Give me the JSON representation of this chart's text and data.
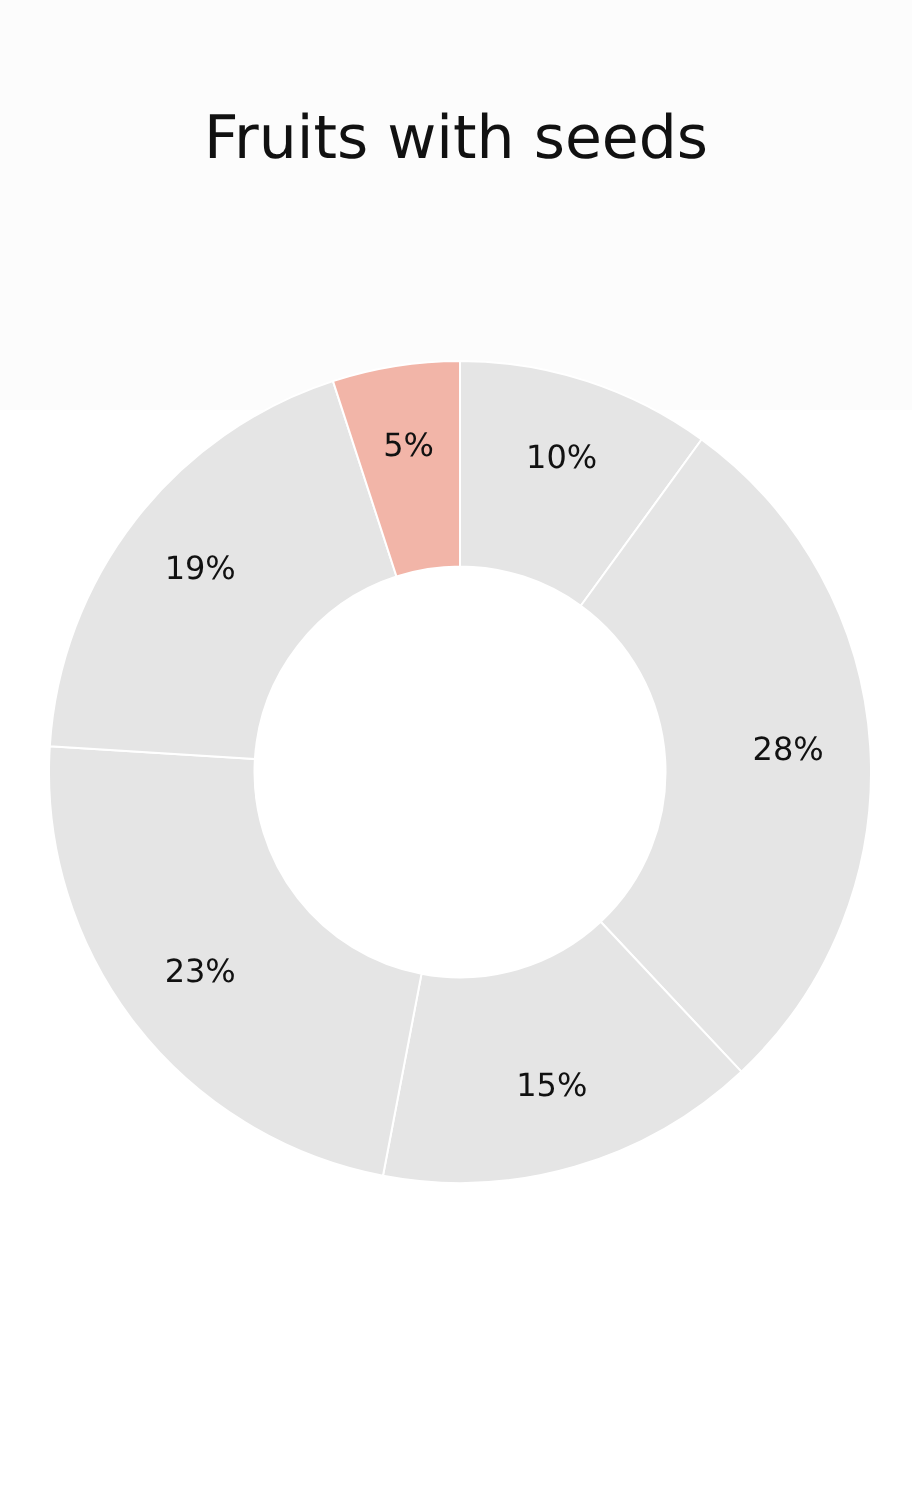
{
  "chart_data": {
    "type": "donut",
    "title": "Fruits with seeds",
    "categories": [
      null,
      null,
      null,
      null,
      null,
      null
    ],
    "values": [
      10,
      28,
      15,
      23,
      19,
      5
    ],
    "colors": [
      "#e5e5e5",
      "#e5e5e5",
      "#e5e5e5",
      "#e5e5e5",
      "#e5e5e5",
      "#f2b5a8"
    ],
    "value_labels": [
      "10%",
      "28%",
      "15%",
      "23%",
      "19%",
      "5%"
    ],
    "legend": false
  }
}
